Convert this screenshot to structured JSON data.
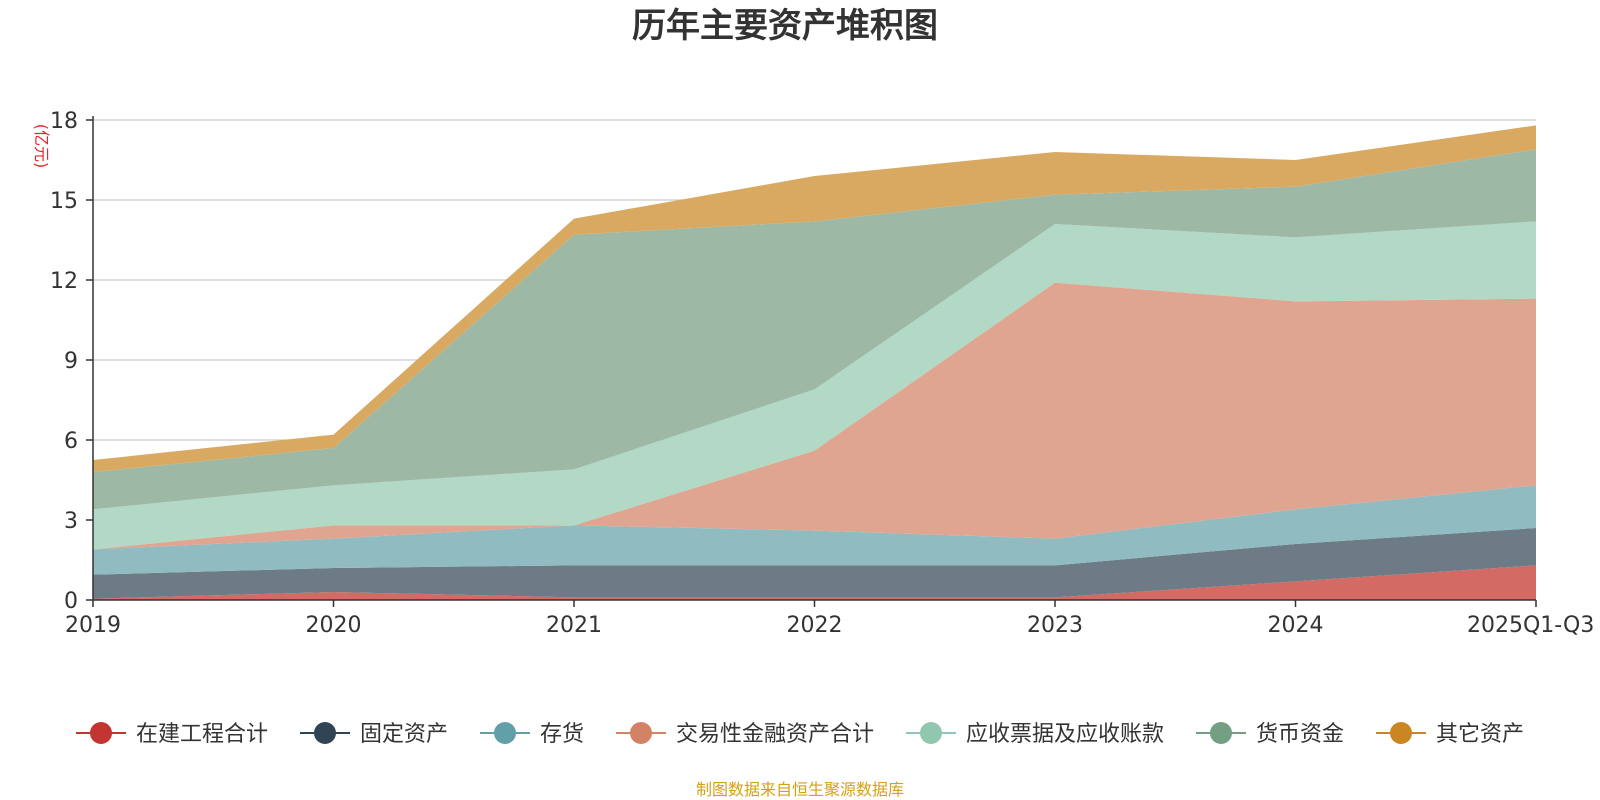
{
  "chart_data": {
    "type": "area",
    "stacked": true,
    "title": "历年主要资产堆积图",
    "ylabel": "(亿元)",
    "xlabel": "",
    "categories": [
      "2019",
      "2020",
      "2021",
      "2022",
      "2023",
      "2024",
      "2025Q1-Q3"
    ],
    "ylim": [
      0,
      18
    ],
    "yticks": [
      0,
      3,
      6,
      9,
      12,
      15,
      18
    ],
    "grid": true,
    "legend_position": "bottom",
    "series": [
      {
        "name": "在建工程合计",
        "color": "#c23531",
        "fill": "#d46a64",
        "values": [
          0.05,
          0.3,
          0.1,
          0.1,
          0.1,
          0.7,
          1.3
        ]
      },
      {
        "name": "固定资产",
        "color": "#2f4554",
        "fill": "#6d7b86",
        "values": [
          0.9,
          0.9,
          1.2,
          1.2,
          1.2,
          1.4,
          1.4
        ]
      },
      {
        "name": "存货",
        "color": "#61a0a8",
        "fill": "#90bbc1",
        "values": [
          0.95,
          1.1,
          1.5,
          1.3,
          1.0,
          1.3,
          1.6
        ]
      },
      {
        "name": "交易性金融资产合计",
        "color": "#d48265",
        "fill": "#e0a590",
        "values": [
          0.0,
          0.5,
          0.0,
          3.0,
          9.6,
          7.8,
          7.0
        ]
      },
      {
        "name": "应收票据及应收账款",
        "color": "#91c7ae",
        "fill": "#b2d8c6",
        "values": [
          1.5,
          1.5,
          2.1,
          2.3,
          2.2,
          2.4,
          2.9
        ]
      },
      {
        "name": "货币资金",
        "color": "#749f83",
        "fill": "#9db9a6",
        "values": [
          1.4,
          1.4,
          8.8,
          6.3,
          1.1,
          1.9,
          2.7
        ]
      },
      {
        "name": "其它资产",
        "color": "#ca8622",
        "fill": "#d9a961",
        "values": [
          0.45,
          0.5,
          0.6,
          1.7,
          1.6,
          1.0,
          0.9
        ]
      }
    ],
    "source_note": "制图数据来自恒生聚源数据库"
  }
}
